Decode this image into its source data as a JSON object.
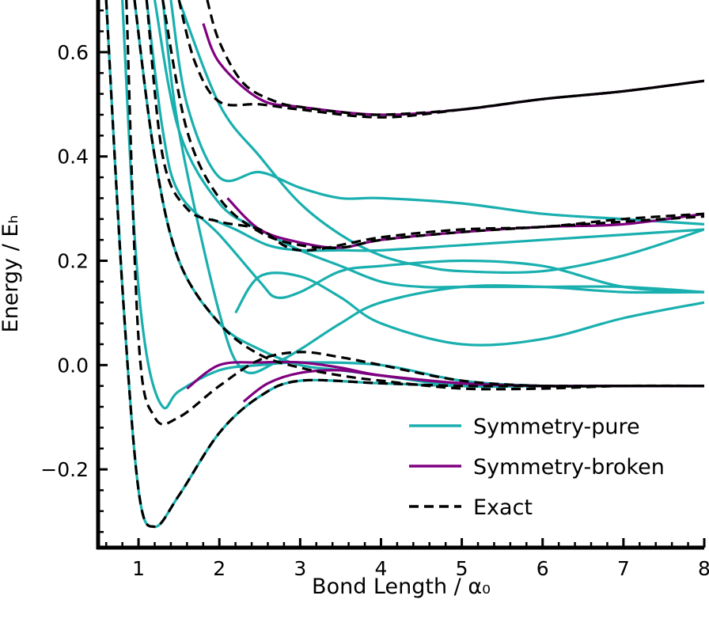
{
  "chart_data": {
    "type": "line",
    "xlabel": "Bond Length / α₀",
    "ylabel": "Energy / Eₕ",
    "xlim": [
      0.5,
      8.0
    ],
    "ylim": [
      -0.35,
      0.7
    ],
    "x_ticks": [
      "1",
      "2",
      "3",
      "4",
      "5",
      "6",
      "7",
      "8"
    ],
    "y_ticks": [
      "−0.2",
      "0.0",
      "0.2",
      "0.4",
      "0.6"
    ],
    "grid": false,
    "legend_position": "lower-right",
    "legend": [
      {
        "label": "Symmetry-pure",
        "color": "#1aafaf",
        "style": "solid"
      },
      {
        "label": "Symmetry-broken",
        "color": "#800080",
        "style": "solid"
      },
      {
        "label": "Exact",
        "color": "#000000",
        "style": "dashed"
      }
    ],
    "series": [
      {
        "group": "Symmetry-pure",
        "x": [
          0.6,
          0.8,
          1.0,
          1.2,
          1.5,
          2.0,
          2.5,
          3.0,
          4.0,
          5.0,
          6.0,
          7.0,
          8.0
        ],
        "y": [
          0.7,
          0.15,
          -0.24,
          -0.31,
          -0.25,
          -0.13,
          -0.06,
          -0.03,
          -0.035,
          -0.04,
          -0.04,
          -0.04,
          -0.04
        ]
      },
      {
        "group": "Symmetry-pure",
        "x": [
          0.8,
          0.95,
          1.1,
          1.3,
          1.5,
          2.0,
          2.5,
          3.0,
          4.0,
          5.0,
          6.0,
          7.0,
          8.0
        ],
        "y": [
          0.7,
          0.25,
          0.02,
          -0.08,
          -0.05,
          -0.01,
          0.0,
          0.005,
          0.0,
          -0.03,
          -0.04,
          -0.04,
          -0.04
        ]
      },
      {
        "group": "Symmetry-pure",
        "x": [
          0.95,
          1.2,
          1.5,
          2.0,
          2.5,
          3.0,
          3.5,
          4.0,
          5.0,
          6.0,
          7.0,
          8.0
        ],
        "y": [
          0.7,
          0.4,
          0.2,
          0.08,
          0.03,
          0.0,
          -0.01,
          -0.02,
          -0.04,
          -0.04,
          -0.04,
          -0.04
        ]
      },
      {
        "group": "Symmetry-pure",
        "x": [
          1.3,
          1.5,
          2.0,
          2.3,
          2.7,
          3.0,
          3.5,
          4.0,
          5.0,
          6.0,
          7.0,
          8.0
        ],
        "y": [
          0.7,
          0.45,
          0.1,
          -0.01,
          0.005,
          0.03,
          0.08,
          0.12,
          0.15,
          0.15,
          0.14,
          0.14
        ]
      },
      {
        "group": "Symmetry-pure",
        "x": [
          1.1,
          1.3,
          1.5,
          2.0,
          2.5,
          2.7,
          3.0,
          3.5,
          4.0,
          5.0,
          6.0,
          7.0,
          8.0
        ],
        "y": [
          0.7,
          0.45,
          0.33,
          0.25,
          0.16,
          0.13,
          0.14,
          0.18,
          0.19,
          0.2,
          0.19,
          0.15,
          0.14
        ]
      },
      {
        "group": "Symmetry-pure",
        "x": [
          1.2,
          1.5,
          2.0,
          2.5,
          3.0,
          3.5,
          4.0,
          4.5,
          5.0,
          6.0,
          7.0,
          8.0
        ],
        "y": [
          0.7,
          0.45,
          0.31,
          0.26,
          0.22,
          0.19,
          0.16,
          0.15,
          0.15,
          0.15,
          0.15,
          0.14
        ]
      },
      {
        "group": "Symmetry-pure",
        "x": [
          1.5,
          2.0,
          2.5,
          3.0,
          3.5,
          4.0,
          4.5,
          5.0,
          6.0,
          7.0,
          8.0
        ],
        "y": [
          0.7,
          0.5,
          0.4,
          0.31,
          0.25,
          0.21,
          0.19,
          0.18,
          0.18,
          0.21,
          0.26
        ]
      },
      {
        "group": "Symmetry-pure",
        "x": [
          1.4,
          1.6,
          2.0,
          2.5,
          3.0,
          3.5,
          4.0,
          5.0,
          6.0,
          7.0,
          8.0
        ],
        "y": [
          0.7,
          0.5,
          0.36,
          0.37,
          0.34,
          0.32,
          0.32,
          0.31,
          0.29,
          0.28,
          0.27
        ]
      },
      {
        "group": "Symmetry-pure",
        "x": [
          2.2,
          2.5,
          3.0,
          3.5,
          4.0,
          5.0,
          6.0,
          7.0,
          8.0
        ],
        "y": [
          0.1,
          0.17,
          0.17,
          0.13,
          0.08,
          0.04,
          0.05,
          0.09,
          0.12
        ]
      },
      {
        "group": "Symmetry-pure",
        "x": [
          1.9,
          2.2,
          2.6,
          3.0,
          3.5,
          4.0,
          5.0,
          6.0,
          7.0,
          8.0
        ],
        "y": [
          0.28,
          0.26,
          0.23,
          0.22,
          0.22,
          0.22,
          0.23,
          0.24,
          0.25,
          0.26
        ]
      },
      {
        "group": "Symmetry-broken",
        "x": [
          1.8,
          2.0,
          2.5,
          3.0,
          4.0,
          5.0,
          6.0,
          7.0,
          8.0
        ],
        "y": [
          0.655,
          0.58,
          0.51,
          0.495,
          0.48,
          0.49,
          0.51,
          0.525,
          0.545
        ]
      },
      {
        "group": "Symmetry-broken",
        "x": [
          2.1,
          2.5,
          3.0,
          3.5,
          4.0,
          5.0,
          6.0,
          7.0,
          8.0
        ],
        "y": [
          0.32,
          0.26,
          0.235,
          0.225,
          0.24,
          0.255,
          0.265,
          0.27,
          0.29
        ]
      },
      {
        "group": "Symmetry-broken",
        "x": [
          1.6,
          2.0,
          2.5,
          3.0,
          3.5,
          4.0,
          5.0,
          6.0,
          7.0,
          8.0
        ],
        "y": [
          -0.045,
          0.0,
          0.005,
          0.005,
          -0.005,
          -0.02,
          -0.035,
          -0.04,
          -0.04,
          -0.04
        ]
      },
      {
        "group": "Symmetry-broken",
        "x": [
          2.3,
          2.6,
          3.0,
          3.5,
          4.0,
          5.0,
          6.0,
          7.0,
          8.0
        ],
        "y": [
          -0.07,
          -0.035,
          -0.015,
          -0.01,
          -0.02,
          -0.035,
          -0.04,
          -0.04,
          -0.04
        ]
      },
      {
        "group": "Exact",
        "x": [
          0.6,
          0.8,
          1.0,
          1.2,
          1.5,
          2.0,
          2.5,
          3.0,
          4.0,
          5.0,
          6.0,
          7.0,
          8.0
        ],
        "y": [
          0.7,
          0.15,
          -0.24,
          -0.31,
          -0.25,
          -0.13,
          -0.06,
          -0.03,
          -0.035,
          -0.04,
          -0.04,
          -0.04,
          -0.04
        ]
      },
      {
        "group": "Exact",
        "x": [
          0.85,
          1.0,
          1.2,
          1.5,
          2.0,
          2.5,
          3.0,
          3.5,
          4.0,
          5.0,
          6.0,
          7.0,
          8.0
        ],
        "y": [
          0.7,
          0.05,
          -0.1,
          -0.1,
          -0.04,
          0.01,
          0.025,
          0.015,
          0.0,
          -0.03,
          -0.04,
          -0.04,
          -0.04
        ]
      },
      {
        "group": "Exact",
        "x": [
          0.95,
          1.2,
          1.5,
          2.0,
          2.5,
          3.0,
          3.5,
          4.0,
          5.0,
          6.0,
          7.0,
          8.0
        ],
        "y": [
          0.7,
          0.4,
          0.2,
          0.08,
          0.02,
          -0.005,
          -0.02,
          -0.03,
          -0.045,
          -0.045,
          -0.04,
          -0.04
        ]
      },
      {
        "group": "Exact",
        "x": [
          1.1,
          1.3,
          1.6,
          2.0,
          2.5,
          3.0,
          4.0,
          5.0,
          6.0,
          7.0,
          8.0
        ],
        "y": [
          0.7,
          0.4,
          0.3,
          0.275,
          0.26,
          0.22,
          0.245,
          0.26,
          0.265,
          0.28,
          0.29
        ]
      },
      {
        "group": "Exact",
        "x": [
          1.3,
          1.6,
          2.0,
          2.5,
          3.0,
          3.5,
          4.0,
          5.0,
          6.0,
          7.0,
          8.0
        ],
        "y": [
          0.7,
          0.45,
          0.32,
          0.255,
          0.23,
          0.225,
          0.24,
          0.255,
          0.265,
          0.275,
          0.285
        ]
      },
      {
        "group": "Exact",
        "x": [
          1.5,
          1.7,
          2.0,
          2.5,
          3.0,
          4.0,
          5.0,
          6.0,
          7.0,
          8.0
        ],
        "y": [
          0.7,
          0.58,
          0.505,
          0.5,
          0.49,
          0.475,
          0.49,
          0.51,
          0.525,
          0.545
        ]
      },
      {
        "group": "Exact",
        "x": [
          1.85,
          2.0,
          2.3,
          2.7,
          3.0,
          3.5,
          4.0,
          5.0,
          6.0,
          7.0,
          8.0
        ],
        "y": [
          0.7,
          0.62,
          0.54,
          0.505,
          0.495,
          0.485,
          0.48,
          0.49,
          0.51,
          0.525,
          0.545
        ]
      }
    ]
  }
}
